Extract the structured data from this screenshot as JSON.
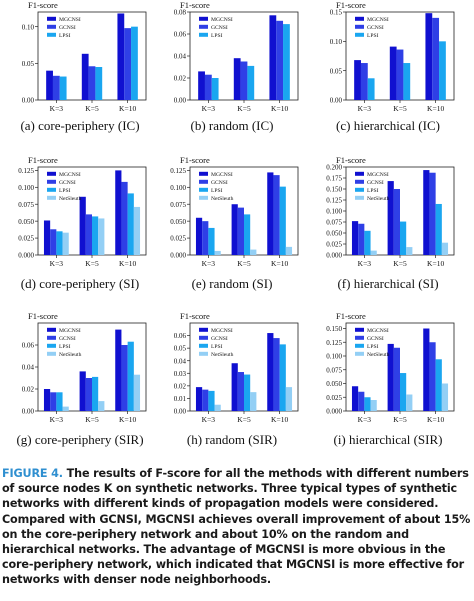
{
  "chart_data": [
    {
      "type": "bar",
      "title": "(a) core-periphery (IC)",
      "ylabel": "F1-score",
      "categories": [
        "K=3",
        "K=5",
        "K=10"
      ],
      "ylim": [
        0,
        0.12
      ],
      "yticks": [
        0.0,
        0.05,
        0.1
      ],
      "yticklabels": [
        "0.00",
        "0.05",
        "0.10"
      ],
      "series": [
        {
          "name": "MGCNSI",
          "values": [
            0.04,
            0.063,
            0.118
          ]
        },
        {
          "name": "GCNSI",
          "values": [
            0.033,
            0.046,
            0.098
          ]
        },
        {
          "name": "LPSI",
          "values": [
            0.032,
            0.045,
            0.1
          ]
        }
      ]
    },
    {
      "type": "bar",
      "title": "(b) random (IC)",
      "ylabel": "F1-score",
      "categories": [
        "K=3",
        "K=5",
        "K=10"
      ],
      "ylim": [
        0,
        0.08
      ],
      "yticks": [
        0.0,
        0.02,
        0.04,
        0.06,
        0.08
      ],
      "yticklabels": [
        "0.00",
        "0.02",
        "0.04",
        "0.06",
        "0.08"
      ],
      "series": [
        {
          "name": "MGCNSI",
          "values": [
            0.026,
            0.038,
            0.077
          ]
        },
        {
          "name": "GCNSI",
          "values": [
            0.023,
            0.035,
            0.072
          ]
        },
        {
          "name": "LPSI",
          "values": [
            0.02,
            0.031,
            0.069
          ]
        }
      ]
    },
    {
      "type": "bar",
      "title": "(c) hierarchical (IC)",
      "ylabel": "F1-score",
      "categories": [
        "K=3",
        "K=5",
        "K=10"
      ],
      "ylim": [
        0,
        0.15
      ],
      "yticks": [
        0.0,
        0.05,
        0.1,
        0.15
      ],
      "yticklabels": [
        "0.00",
        "0.05",
        "0.10",
        "0.15"
      ],
      "series": [
        {
          "name": "MGCNSI",
          "values": [
            0.068,
            0.091,
            0.148
          ]
        },
        {
          "name": "GCNSI",
          "values": [
            0.063,
            0.086,
            0.14
          ]
        },
        {
          "name": "LPSI",
          "values": [
            0.037,
            0.063,
            0.1
          ]
        }
      ]
    },
    {
      "type": "bar",
      "title": "(d) core-periphery (SI)",
      "ylabel": "F1-score",
      "categories": [
        "K=3",
        "K=5",
        "K=10"
      ],
      "ylim": [
        0,
        0.13
      ],
      "yticks": [
        0.0,
        0.025,
        0.05,
        0.075,
        0.1,
        0.125
      ],
      "yticklabels": [
        "0.000",
        "0.025",
        "0.050",
        "0.075",
        "0.100",
        "0.125"
      ],
      "series": [
        {
          "name": "MGCNSI",
          "values": [
            0.051,
            0.086,
            0.125
          ]
        },
        {
          "name": "GCNSI",
          "values": [
            0.038,
            0.06,
            0.108
          ]
        },
        {
          "name": "LPSI",
          "values": [
            0.035,
            0.057,
            0.091
          ]
        },
        {
          "name": "NetSleuth",
          "values": [
            0.033,
            0.054,
            0.071
          ]
        }
      ]
    },
    {
      "type": "bar",
      "title": "(e) random (SI)",
      "ylabel": "F1-score",
      "categories": [
        "K=3",
        "K=5",
        "K=10"
      ],
      "ylim": [
        0,
        0.13
      ],
      "yticks": [
        0.0,
        0.025,
        0.05,
        0.075,
        0.1,
        0.125
      ],
      "yticklabels": [
        "0.000",
        "0.025",
        "0.050",
        "0.075",
        "0.100",
        "0.125"
      ],
      "series": [
        {
          "name": "MGCNSI",
          "values": [
            0.055,
            0.075,
            0.122
          ]
        },
        {
          "name": "GCNSI",
          "values": [
            0.05,
            0.07,
            0.118
          ]
        },
        {
          "name": "LPSI",
          "values": [
            0.04,
            0.06,
            0.101
          ]
        },
        {
          "name": "NetSleuth",
          "values": [
            0.006,
            0.008,
            0.012
          ]
        }
      ]
    },
    {
      "type": "bar",
      "title": "(f) hierarchical (SI)",
      "ylabel": "F1-score",
      "categories": [
        "K=3",
        "K=5",
        "K=10"
      ],
      "ylim": [
        0,
        0.2
      ],
      "yticks": [
        0.0,
        0.025,
        0.05,
        0.075,
        0.1,
        0.125,
        0.15,
        0.175,
        0.2
      ],
      "yticklabels": [
        "0.000",
        "0.025",
        "0.050",
        "0.075",
        "0.100",
        "0.125",
        "0.150",
        "0.175",
        "0.200"
      ],
      "series": [
        {
          "name": "MGCNSI",
          "values": [
            0.077,
            0.168,
            0.193
          ]
        },
        {
          "name": "GCNSI",
          "values": [
            0.071,
            0.15,
            0.187
          ]
        },
        {
          "name": "LPSI",
          "values": [
            0.055,
            0.076,
            0.116
          ]
        },
        {
          "name": "NetSleuth",
          "values": [
            0.01,
            0.018,
            0.028
          ]
        }
      ]
    },
    {
      "type": "bar",
      "title": "(g) core-periphery (SIR)",
      "ylabel": "F1-score",
      "categories": [
        "K=3",
        "K=5",
        "K=10"
      ],
      "ylim": [
        0,
        0.08
      ],
      "yticks": [
        0.0,
        0.02,
        0.04,
        0.06
      ],
      "yticklabels": [
        "0.00",
        "0.02",
        "0.04",
        "0.06"
      ],
      "series": [
        {
          "name": "MGCNSI",
          "values": [
            0.02,
            0.036,
            0.074
          ]
        },
        {
          "name": "GCNSI",
          "values": [
            0.017,
            0.03,
            0.06
          ]
        },
        {
          "name": "LPSI",
          "values": [
            0.017,
            0.031,
            0.063
          ]
        },
        {
          "name": "NetSleuth",
          "values": [
            0.004,
            0.009,
            0.033
          ]
        }
      ]
    },
    {
      "type": "bar",
      "title": "(h) random (SIR)",
      "ylabel": "F1-score",
      "categories": [
        "K=3",
        "K=5",
        "K=10"
      ],
      "ylim": [
        0,
        0.07
      ],
      "yticks": [
        0.0,
        0.01,
        0.02,
        0.03,
        0.04,
        0.05,
        0.06
      ],
      "yticklabels": [
        "0.00",
        "0.01",
        "0.02",
        "0.03",
        "0.04",
        "0.05",
        "0.06"
      ],
      "series": [
        {
          "name": "MGCNSI",
          "values": [
            0.019,
            0.038,
            0.062
          ]
        },
        {
          "name": "GCNSI",
          "values": [
            0.017,
            0.031,
            0.058
          ]
        },
        {
          "name": "LPSI",
          "values": [
            0.016,
            0.029,
            0.053
          ]
        },
        {
          "name": "NetSleuth",
          "values": [
            0.005,
            0.015,
            0.019
          ]
        }
      ]
    },
    {
      "type": "bar",
      "title": "(i) hierarchical (SIR)",
      "ylabel": "F1-score",
      "categories": [
        "K=3",
        "K=5",
        "K=10"
      ],
      "ylim": [
        0,
        0.16
      ],
      "yticks": [
        0.0,
        0.025,
        0.05,
        0.075,
        0.1,
        0.125,
        0.15
      ],
      "yticklabels": [
        "0.000",
        "0.025",
        "0.050",
        "0.075",
        "0.100",
        "0.125",
        "0.150"
      ],
      "series": [
        {
          "name": "MGCNSI",
          "values": [
            0.045,
            0.122,
            0.15
          ]
        },
        {
          "name": "GCNSI",
          "values": [
            0.035,
            0.115,
            0.125
          ]
        },
        {
          "name": "LPSI",
          "values": [
            0.025,
            0.069,
            0.094
          ]
        },
        {
          "name": "NetSleuth",
          "values": [
            0.02,
            0.03,
            0.05
          ]
        }
      ]
    }
  ],
  "colors": {
    "MGCNSI": "#1010d0",
    "GCNSI": "#2f3fe6",
    "LPSI": "#1aa6f0",
    "NetSleuth": "#93cff5"
  },
  "caption": {
    "label": "FIGURE 4.",
    "text": "The results of F-score for all the methods with different numbers of source nodes K on synthetic networks. Three typical types of synthetic networks with different kinds of propagation models were considered. Compared with GCNSI, MGCNSI achieves overall improvement of about 15% on the core-periphery network and about 10% on the random and hierarchical networks. The advantage of MGCNSI is more obvious in the core-periphery network, which indicated that MGCNSI is more effective for networks with denser node neighborhoods."
  }
}
